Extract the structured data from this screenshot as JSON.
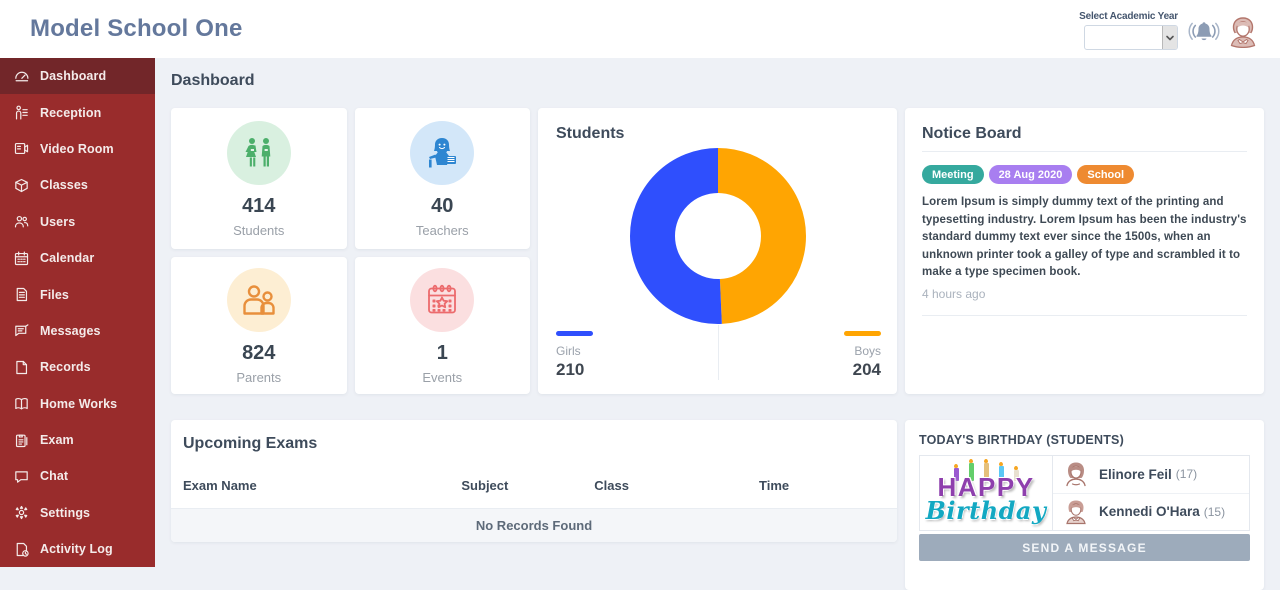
{
  "header": {
    "title": "Model School One",
    "academic_year_label": "Select Academic Year",
    "academic_year_value": ""
  },
  "sidebar": {
    "items": [
      {
        "label": "Dashboard",
        "icon": "dashboard",
        "active": true
      },
      {
        "label": "Reception",
        "icon": "reception",
        "active": false
      },
      {
        "label": "Video Room",
        "icon": "video-room",
        "active": false
      },
      {
        "label": "Classes",
        "icon": "classes",
        "active": false
      },
      {
        "label": "Users",
        "icon": "users",
        "active": false
      },
      {
        "label": "Calendar",
        "icon": "calendar",
        "active": false
      },
      {
        "label": "Files",
        "icon": "files",
        "active": false
      },
      {
        "label": "Messages",
        "icon": "messages",
        "active": false
      },
      {
        "label": "Records",
        "icon": "records",
        "active": false
      },
      {
        "label": "Home Works",
        "icon": "home-works",
        "active": false
      },
      {
        "label": "Exam",
        "icon": "exam",
        "active": false
      },
      {
        "label": "Chat",
        "icon": "chat",
        "active": false
      },
      {
        "label": "Settings",
        "icon": "settings",
        "active": false
      },
      {
        "label": "Activity Log",
        "icon": "activity-log",
        "active": false
      }
    ]
  },
  "page": {
    "title": "Dashboard"
  },
  "stats": [
    {
      "value": "414",
      "label": "Students",
      "icon": "students",
      "color": "#4caf6b",
      "bg": "#d9f0e0"
    },
    {
      "value": "40",
      "label": "Teachers",
      "icon": "teachers",
      "color": "#2e86d1",
      "bg": "#d3e7f9"
    },
    {
      "value": "824",
      "label": "Parents",
      "icon": "parents",
      "color": "#e88f3c",
      "bg": "#fdeed3"
    },
    {
      "value": "1",
      "label": "Events",
      "icon": "events",
      "color": "#ec6b6d",
      "bg": "#fbdfe0"
    }
  ],
  "chart_data": {
    "type": "pie",
    "title": "Students",
    "labels": [
      "Girls",
      "Boys"
    ],
    "values": [
      210,
      204
    ],
    "colors": [
      "#2f4ffd",
      "#ffa502"
    ],
    "legend_position": "bottom",
    "donut": true
  },
  "notice_board": {
    "title": "Notice Board",
    "notices": [
      {
        "tags": [
          {
            "label": "Meeting",
            "color": "#35a99e"
          },
          {
            "label": "28 Aug 2020",
            "color": "#a87ef0"
          },
          {
            "label": "School",
            "color": "#ee8a31"
          }
        ],
        "text": "Lorem Ipsum is simply dummy text of the printing and typesetting industry. Lorem Ipsum has been the industry's standard dummy text ever since the 1500s, when an unknown printer took a galley of type and scrambled it to make a type specimen book.",
        "time_ago": "4 hours ago"
      }
    ]
  },
  "upcoming_exams": {
    "title": "Upcoming Exams",
    "columns": [
      "Exam Name",
      "Subject",
      "Class",
      "Time"
    ],
    "rows": [],
    "empty_text": "No Records Found"
  },
  "birthday": {
    "title": "TODAY'S BIRTHDAY (STUDENTS)",
    "art": {
      "line1": "HAPPY",
      "line2": "Birthday"
    },
    "students": [
      {
        "name": "Elinore Feil",
        "age": "(17)",
        "avatar": "female"
      },
      {
        "name": "Kennedi O'Hara",
        "age": "(15)",
        "avatar": "male"
      }
    ],
    "button_label": "SEND A MESSAGE"
  }
}
